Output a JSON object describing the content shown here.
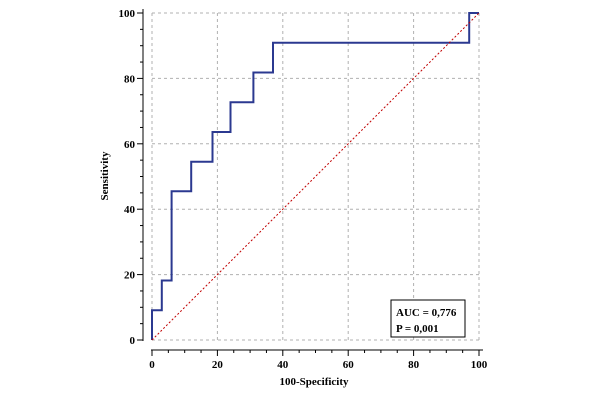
{
  "chart_data": {
    "type": "line",
    "title": "",
    "xlabel": "100-Specificity",
    "ylabel": "Sensitivity",
    "xlim": [
      0,
      100
    ],
    "ylim": [
      0,
      100
    ],
    "x_ticks": [
      "0",
      "20",
      "40",
      "60",
      "80",
      "100"
    ],
    "y_ticks": [
      "0",
      "20",
      "40",
      "60",
      "80",
      "100"
    ],
    "grid": true,
    "series": [
      {
        "name": "",
        "style": "solid",
        "color": "#2b3990",
        "x": [
          0,
          0,
          3,
          3,
          6,
          6,
          12,
          12,
          18.5,
          18.5,
          24,
          24,
          31,
          31,
          37,
          37,
          97,
          97,
          100
        ],
        "y": [
          0,
          9.1,
          9.1,
          18.2,
          18.2,
          45.5,
          45.5,
          54.5,
          54.5,
          63.6,
          63.6,
          72.7,
          72.7,
          81.8,
          81.8,
          90.9,
          90.9,
          100,
          100
        ]
      },
      {
        "name": "",
        "style": "dotted",
        "color": "#c00000",
        "x": [
          0,
          100
        ],
        "y": [
          0,
          100
        ]
      }
    ],
    "annotations": [
      "AUC = 0,776",
      "P = 0,001"
    ],
    "annotation_placement": "bottom-right"
  }
}
